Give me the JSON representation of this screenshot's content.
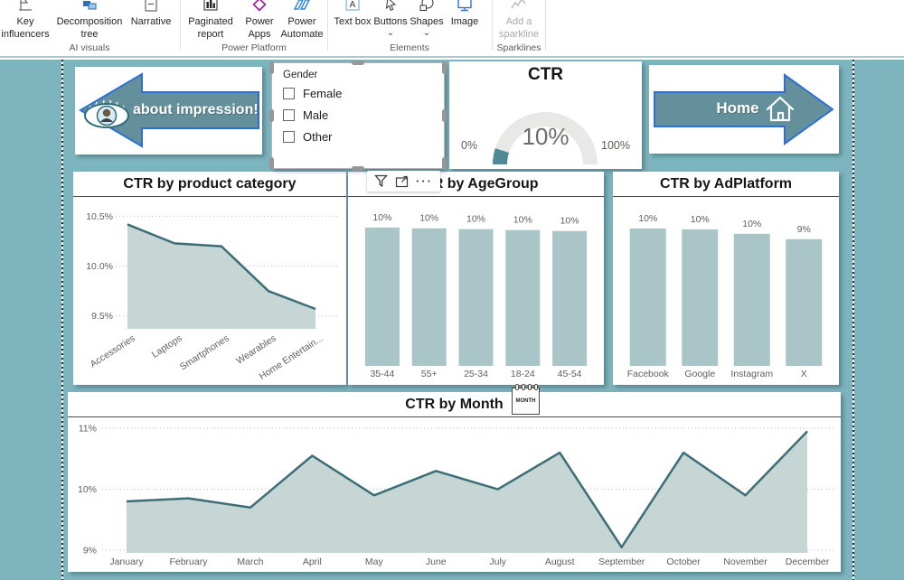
{
  "ribbon": {
    "groups": [
      {
        "label": "AI visuals",
        "items": [
          {
            "label": "Key influencers",
            "icon": "key-influencers-icon"
          },
          {
            "label": "Decomposition tree",
            "icon": "decomposition-tree-icon"
          },
          {
            "label": "Narrative",
            "icon": "narrative-icon"
          }
        ]
      },
      {
        "label": "Power Platform",
        "items": [
          {
            "label": "Paginated report",
            "icon": "paginated-report-icon"
          },
          {
            "label": "Power Apps",
            "icon": "power-apps-icon"
          },
          {
            "label": "Power Automate",
            "icon": "power-automate-icon"
          }
        ]
      },
      {
        "label": "Elements",
        "items": [
          {
            "label": "Text box",
            "icon": "text-box-icon"
          },
          {
            "label": "Buttons",
            "icon": "buttons-icon",
            "has_dropdown": true
          },
          {
            "label": "Shapes",
            "icon": "shapes-icon",
            "has_dropdown": true
          },
          {
            "label": "Image",
            "icon": "image-icon"
          }
        ]
      },
      {
        "label": "Sparklines",
        "items": [
          {
            "label": "Add a sparkline",
            "icon": "sparkline-icon",
            "disabled": true
          }
        ]
      }
    ]
  },
  "canvas": {
    "nav_back": {
      "label": "about impression!"
    },
    "slicer": {
      "title": "Gender",
      "options": [
        {
          "label": "Female",
          "checked": false
        },
        {
          "label": "Male",
          "checked": false
        },
        {
          "label": "Other",
          "checked": false
        }
      ]
    },
    "gauge": {
      "title": "CTR",
      "value": 0.1,
      "value_label": "10%",
      "min_label": "0%",
      "max_label": "100%"
    },
    "nav_home": {
      "label": "Home"
    },
    "visual_toolbar": {
      "more_label": "···"
    },
    "month_sticker": {
      "label": "MONTH"
    }
  },
  "chart_data": [
    {
      "type": "area",
      "title": "CTR by product category",
      "categories": [
        "Accessories",
        "Laptops",
        "Smartphones",
        "Wearables",
        "Home Entertain..."
      ],
      "values": [
        10.42,
        10.23,
        10.2,
        9.75,
        9.57
      ],
      "yticks": [
        {
          "v": 10.5,
          "label": "10.5%"
        },
        {
          "v": 10.0,
          "label": "10.0%"
        },
        {
          "v": 9.5,
          "label": "9.5%"
        }
      ],
      "ylim": [
        9.37,
        10.515
      ],
      "grid": true,
      "xlabel": "",
      "ylabel": ""
    },
    {
      "type": "bar",
      "title": "CTR by AgeGroup",
      "categories": [
        "35-44",
        "55+",
        "25-34",
        "18-24",
        "45-54"
      ],
      "values": [
        10.32,
        10.26,
        10.2,
        10.13,
        10.06
      ],
      "bar_labels": [
        "10%",
        "10%",
        "10%",
        "10%",
        "10%"
      ],
      "ylim": [
        0,
        12.6
      ],
      "grid": false,
      "xlabel": "",
      "ylabel": ""
    },
    {
      "type": "bar",
      "title": "CTR by AdPlatform",
      "categories": [
        "Facebook",
        "Google",
        "Instagram",
        "X"
      ],
      "values": [
        10.25,
        10.18,
        9.85,
        9.45
      ],
      "bar_labels": [
        "10%",
        "10%",
        "10%",
        "9%"
      ],
      "ylim": [
        0,
        12.6
      ],
      "grid": false,
      "xlabel": "",
      "ylabel": ""
    },
    {
      "type": "area",
      "title": "CTR by Month",
      "categories": [
        "January",
        "February",
        "March",
        "April",
        "May",
        "June",
        "July",
        "August",
        "September",
        "October",
        "November",
        "December"
      ],
      "values": [
        9.8,
        9.85,
        9.7,
        10.55,
        9.9,
        10.3,
        10.0,
        10.6,
        9.05,
        10.6,
        9.9,
        10.95
      ],
      "yticks": [
        {
          "v": 11,
          "label": "11%"
        },
        {
          "v": 10,
          "label": "10%"
        },
        {
          "v": 9,
          "label": "9%"
        }
      ],
      "ylim": [
        8.956,
        11.03
      ],
      "grid": true,
      "xlabel": "",
      "ylabel": ""
    }
  ],
  "colors": {
    "canvas_bg": "#7db4bd",
    "card_bg": "#ffffff",
    "arrow_fill": "#64909b",
    "arrow_outline": "#2e6fd6",
    "bar_fill": "#a9c5c8",
    "area_fill": "#c6d6d5",
    "area_line": "#3d6e78",
    "gauge_track": "#e8e8e6",
    "gauge_fill": "#4e8996",
    "axis_label": "#605e5c",
    "gridline": "#c2c2c2"
  }
}
